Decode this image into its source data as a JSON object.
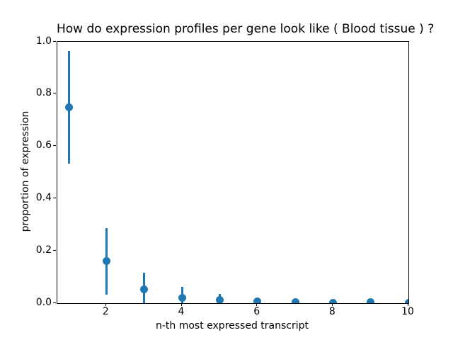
{
  "chart_data": {
    "type": "scatter",
    "title": "How do expression profiles per gene look like ( Blood tissue ) ?",
    "xlabel": "n-th most expressed transcript",
    "ylabel": "proportion of expression",
    "x": [
      1,
      2,
      3,
      4,
      5,
      6,
      7,
      8,
      9,
      10
    ],
    "y": [
      0.75,
      0.16,
      0.052,
      0.019,
      0.012,
      0.006,
      0.005,
      0.002,
      0.003,
      0.002
    ],
    "yerr": [
      0.215,
      0.128,
      0.065,
      0.042,
      0.024,
      0.012,
      0.009,
      0.004,
      0.006,
      0.004
    ],
    "xlim": [
      0.7,
      10
    ],
    "ylim": [
      0,
      1.0
    ],
    "xticks": [
      2,
      4,
      6,
      8,
      10
    ],
    "xtick_labels": [
      "2",
      "4",
      "6",
      "8",
      "10"
    ],
    "yticks": [
      0.0,
      0.2,
      0.4,
      0.6,
      0.8,
      1.0
    ],
    "ytick_labels": [
      "0.0",
      "0.2",
      "0.4",
      "0.6",
      "0.8",
      "1.0"
    ],
    "marker_color": "#1f77b4",
    "axis_color": "#000000",
    "grid": false,
    "legend": null,
    "marker_style": "circle",
    "errorbar_caps": false
  }
}
